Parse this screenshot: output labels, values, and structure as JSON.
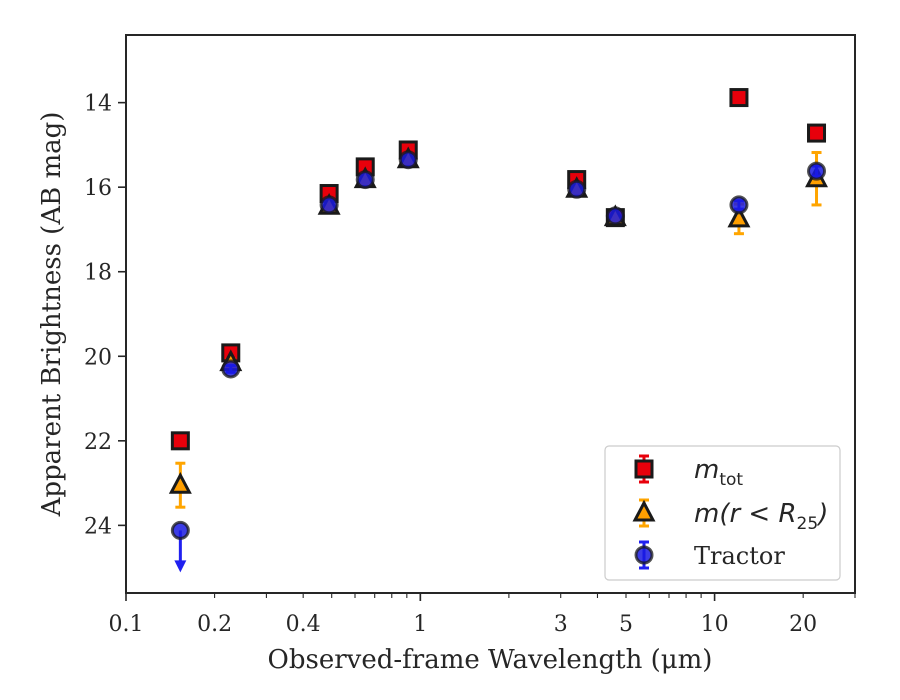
{
  "chart_data": {
    "type": "scatter",
    "xlabel": "Observed-frame Wavelength (μm)",
    "ylabel": "Apparent Brightness (AB mag)",
    "x_scale": "log",
    "xlim": [
      0.1,
      30
    ],
    "ylim": [
      25.6,
      12.4
    ],
    "y_inverted": true,
    "x_ticks": [
      0.1,
      0.2,
      0.4,
      1,
      3,
      5,
      10,
      20
    ],
    "x_tick_labels": [
      "0.1",
      "0.2",
      "0.4",
      "1",
      "3",
      "5",
      "10",
      "20"
    ],
    "y_ticks": [
      14,
      16,
      18,
      20,
      22,
      24
    ],
    "y_tick_labels": [
      "14",
      "16",
      "18",
      "20",
      "22",
      "24"
    ],
    "grid": false,
    "legend_position": "lower-right",
    "series": [
      {
        "name": "m_tot",
        "legend_main": "m",
        "legend_sub": "tot",
        "color": "#e8000b",
        "marker": "square",
        "errcolor": "#e8000b",
        "x": [
          0.153,
          0.227,
          0.49,
          0.65,
          0.91,
          3.4,
          4.6,
          12.1,
          22.2
        ],
        "y": [
          22.0,
          19.92,
          16.15,
          15.52,
          15.12,
          15.82,
          16.72,
          13.88,
          14.72
        ],
        "err": [
          0.05,
          0.05,
          0.05,
          0.05,
          0.05,
          0.05,
          0.05,
          0.05,
          0.05
        ]
      },
      {
        "name": "m(r < R25)",
        "legend_main": "m(r < R",
        "legend_sub": "25",
        "legend_tail": ")",
        "color": "#ff9f00",
        "marker": "triangle",
        "errcolor": "#ffa500",
        "x": [
          0.153,
          0.227,
          0.49,
          0.65,
          0.91,
          3.4,
          4.6,
          12.1,
          22.2
        ],
        "y": [
          23.05,
          20.15,
          16.45,
          15.82,
          15.35,
          16.05,
          16.72,
          16.75,
          15.8
        ],
        "err": [
          0.52,
          0.08,
          0.06,
          0.05,
          0.05,
          0.05,
          0.05,
          0.35,
          0.62
        ]
      },
      {
        "name": "Tractor",
        "legend_main": "Tractor",
        "color": "#1a1ae0",
        "marker": "circle",
        "errcolor": "#2020f0",
        "x": [
          0.153,
          0.227,
          0.49,
          0.65,
          0.91,
          3.4,
          4.6,
          12.1,
          22.2
        ],
        "y": [
          24.12,
          20.3,
          16.42,
          15.82,
          15.35,
          16.05,
          16.68,
          16.42,
          15.62
        ],
        "err": [
          0.0,
          0.08,
          0.06,
          0.05,
          0.05,
          0.05,
          0.05,
          0.1,
          0.12
        ],
        "upper_limit_index": 0
      }
    ]
  }
}
